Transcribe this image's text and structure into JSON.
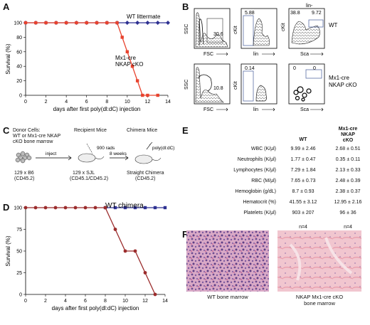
{
  "panels": {
    "A": "A",
    "B": "B",
    "C": "C",
    "D": "D",
    "E": "E",
    "F": "F"
  },
  "chart_data": [
    {
      "type": "line",
      "panel": "A",
      "xlabel": "days after first poly(dl:dC) injection",
      "ylabel": "Survival (%)",
      "xlim": [
        0,
        14
      ],
      "ylim": [
        0,
        100
      ],
      "xticks": [
        0,
        2,
        4,
        6,
        8,
        10,
        12,
        14
      ],
      "yticks": [
        0,
        20,
        40,
        60,
        80,
        100
      ],
      "series": [
        {
          "name": "WT littermate",
          "color": "#2e3192",
          "marker": "diamond",
          "x": [
            0,
            1,
            2,
            3,
            4,
            5,
            6,
            7,
            8,
            9,
            10,
            11,
            12,
            13,
            14
          ],
          "y": [
            100,
            100,
            100,
            100,
            100,
            100,
            100,
            100,
            100,
            100,
            100,
            100,
            100,
            100,
            100
          ]
        },
        {
          "name": "Mx1-cre NKAP cKO",
          "color": "#e8432e",
          "marker": "square",
          "x": [
            0,
            1,
            2,
            3,
            4,
            5,
            6,
            7,
            8,
            9,
            9.5,
            10,
            10.5,
            11,
            11.5,
            12,
            13
          ],
          "y": [
            100,
            100,
            100,
            100,
            100,
            100,
            100,
            100,
            100,
            100,
            80,
            60,
            40,
            20,
            0,
            0,
            0
          ]
        }
      ]
    },
    {
      "type": "line",
      "panel": "D",
      "xlabel": "days after first poly(dl:dC) injection",
      "ylabel": "Survival (%)",
      "xlim": [
        0,
        14
      ],
      "ylim": [
        0,
        100
      ],
      "xticks": [
        0,
        2,
        4,
        6,
        8,
        10,
        12,
        14
      ],
      "yticks": [
        0,
        25,
        50,
        75,
        100
      ],
      "series": [
        {
          "name": "WT chimera",
          "color": "#2e3192",
          "marker": "square",
          "x": [
            8,
            9,
            10,
            11,
            12,
            13,
            14
          ],
          "y": [
            100,
            100,
            100,
            100,
            100,
            100,
            100
          ]
        },
        {
          "name": "",
          "color": "#9b2c2c",
          "marker": "circle",
          "x": [
            0,
            1,
            2,
            3,
            4,
            5,
            6,
            7,
            8,
            9,
            10,
            11,
            12,
            13
          ],
          "y": [
            100,
            100,
            100,
            100,
            100,
            100,
            100,
            100,
            100,
            75,
            50,
            50,
            25,
            0
          ]
        }
      ]
    }
  ],
  "flow": {
    "wt_label": "WT",
    "cko_label_1": "Mx1-cre",
    "cko_label_2": "NKAP cKO",
    "axes": {
      "ssc": "SSC",
      "fsc": "FSC",
      "ckit": "cKit",
      "lin": "lin",
      "sca": "Sca",
      "lin_minus": "lin-"
    },
    "wt_gates": {
      "fsc": "30.6",
      "lin": "5.88",
      "sca_left": "38.8",
      "sca_right": "9.72"
    },
    "cko_gates": {
      "fsc": "10.8",
      "lin": "0.14",
      "sca_left": "0",
      "sca_right": "0"
    }
  },
  "schematic": {
    "donor_title": "Donor Cells:",
    "donor_line2": "WT or Mx1-cre NKAP",
    "donor_line3": "cKO bone marrow",
    "recipient_title": "Recipient Mice",
    "chimera_title": "Chimera Mice",
    "rads": "900 rads",
    "inject": "inject",
    "weeks": "8 weeks",
    "pic": "poly(dl:dC)",
    "donor_strain": "129 x B6",
    "donor_cd": "(CD45.2)",
    "recip_strain": "129 x SJL",
    "recip_cd": "(CD45.1/CD45.2)",
    "chimera_strain": "Straight Chimera",
    "chimera_cd": "(CD45.2)"
  },
  "table": {
    "header_wt": "WT",
    "header_cko_1": "Mx1-cre",
    "header_cko_2": "NKAP",
    "header_cko_3": "cKO",
    "rows": [
      {
        "label": "WBC (K/μl)",
        "wt": "9.99 ± 2.46",
        "cko": "2.68 ± 0.51"
      },
      {
        "label": "Neutrophils (K/μl)",
        "wt": "1.77 ± 0.47",
        "cko": "0.35 ± 0.11"
      },
      {
        "label": "Lymphocytes (K/μl)",
        "wt": "7.29 ± 1.84",
        "cko": "2.13 ± 0.33"
      },
      {
        "label": "RBC (M/μl)",
        "wt": "7.65 ± 0.73",
        "cko": "2.48 ± 0.39"
      },
      {
        "label": "Hemoglobin (g/dL)",
        "wt": "8.7 ± 0.93",
        "cko": "2.38 ± 0.37"
      },
      {
        "label": "Hematocrit (%)",
        "wt": "41.55 ± 3.12",
        "cko": "12.95 ± 2.16"
      },
      {
        "label": "Platelets (K/μl)",
        "wt": "903 ± 207",
        "cko": "96 ± 36"
      }
    ],
    "n_wt": "n=4",
    "n_cko": "n=4"
  },
  "histology": {
    "wt_caption": "WT bone marrow",
    "cko_caption_1": "NKAP Mx1-cre cKO",
    "cko_caption_2": "bone marrow"
  }
}
